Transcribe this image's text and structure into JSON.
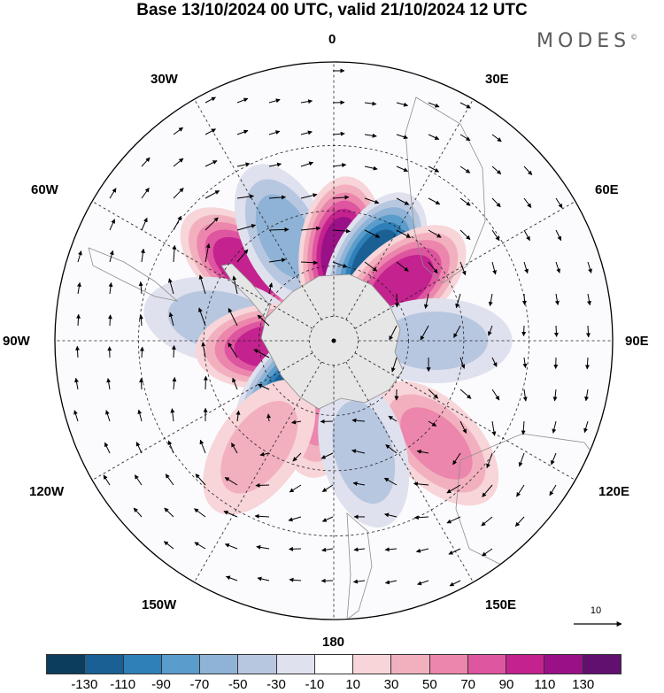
{
  "title": "Base 13/10/2024 00 UTC, valid 21/10/2024 12 UTC",
  "brand": {
    "name": "MODES",
    "mark": "©"
  },
  "longitude_labels": [
    "0",
    "30E",
    "60E",
    "90E",
    "120E",
    "150E",
    "180",
    "150W",
    "120W",
    "90W",
    "60W",
    "30W"
  ],
  "map": {
    "projection": "south-polar-stereographic",
    "field": "anomaly",
    "anomaly_centres": [
      {
        "lon": -50,
        "lat": -45,
        "value": 110
      },
      {
        "lon": -25,
        "lat": -45,
        "value": -60
      },
      {
        "lon": 5,
        "lat": -55,
        "value": 120
      },
      {
        "lon": 28,
        "lat": -55,
        "value": -125
      },
      {
        "lon": 50,
        "lat": -55,
        "value": 110
      },
      {
        "lon": 90,
        "lat": -50,
        "value": -50
      },
      {
        "lon": -80,
        "lat": -45,
        "value": -50
      },
      {
        "lon": -95,
        "lat": -65,
        "value": 95
      },
      {
        "lon": -140,
        "lat": -65,
        "value": -120
      },
      {
        "lon": -170,
        "lat": -65,
        "value": 70
      },
      {
        "lon": 135,
        "lat": -35,
        "value": 60
      },
      {
        "lon": -145,
        "lat": -40,
        "value": 50
      },
      {
        "lon": 165,
        "lat": -45,
        "value": -40
      }
    ]
  },
  "colorbar": {
    "colors": [
      "#0d3d5c",
      "#1a6094",
      "#2f80b8",
      "#5a9ccb",
      "#8eb3d6",
      "#b8c7e0",
      "#e0e1ee",
      "#ffffff",
      "#f7d5d8",
      "#f2b0be",
      "#ec86ac",
      "#de55a0",
      "#c4228e",
      "#9a1086",
      "#621070"
    ],
    "tick_labels": [
      "-130",
      "-110",
      "-90",
      "-70",
      "-50",
      "-30",
      "-10",
      "10",
      "30",
      "50",
      "70",
      "90",
      "110",
      "130"
    ]
  },
  "reference_vector": {
    "label": "10"
  }
}
